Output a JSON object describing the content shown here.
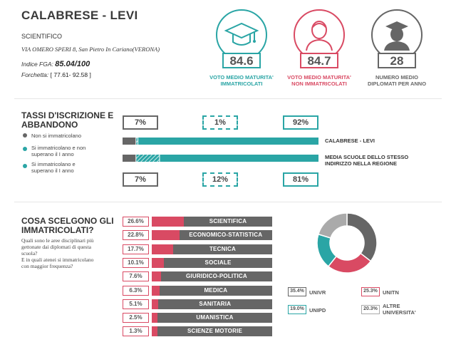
{
  "school": {
    "name": "CALABRESE - LEVI",
    "type": "SCIENTIFICO",
    "address": "VIA OMERO SPERI 8, San Pietro In Cariano(VERONA)",
    "fga_label": "Indice FGA:",
    "fga_value": "85.04/100",
    "forchetta_label": "Forchetta:",
    "forchetta_value": "[ 77.61- 92.58 ]"
  },
  "kpis": [
    {
      "value": "84.6",
      "label_line1": "VOTO MEDIO MATURITA'",
      "label_line2": "IMMATRICOLATI",
      "color": "#2aa5a5",
      "icon": "graduation-cap-icon"
    },
    {
      "value": "84.7",
      "label_line1": "VOTO MEDIO MATURITA'",
      "label_line2": "NON IMMATRICOLATI",
      "color": "#d94a63",
      "icon": "person-icon"
    },
    {
      "value": "28",
      "label_line1": "NUMERO MEDIO",
      "label_line2": "DIPLOMATI PER ANNO",
      "color": "#666666",
      "icon": "graduate-person-icon"
    }
  ],
  "enrollment": {
    "title_line1": "TASSI D'ISCRIZIONE E",
    "title_line2": "ABBANDONO",
    "legend": [
      {
        "line1": "Non si immatricolano",
        "line2": "",
        "color": "#666666"
      },
      {
        "line1": "Si immatricolano e non",
        "line2": "superano il I anno",
        "color": "#2aa5a5"
      },
      {
        "line1": "Si immatricolano e",
        "line2": "superano il I anno",
        "color": "#2aa5a5"
      }
    ],
    "school_row": {
      "label": "CALABRESE - LEVI",
      "not_enrolled": "7%",
      "dropout": "1%",
      "pass": "92%",
      "values": [
        7,
        1,
        92
      ]
    },
    "region_row": {
      "label_line1": "MEDIA SCUOLE DELLO STESSO",
      "label_line2": "INDIRIZZO NELLA REGIONE",
      "not_enrolled": "7%",
      "dropout": "12%",
      "pass": "81%",
      "values": [
        7,
        12,
        81
      ]
    },
    "colors": {
      "gray": "#666666",
      "teal": "#2aa5a5"
    }
  },
  "areas": {
    "title_line1": "COSA SCELGONO GLI",
    "title_line2": "IMMATRICOLATI?",
    "question_line1": "Quali sono le aree disciplinari più",
    "question_line2": "gettonate dai diplomati di questa",
    "question_line3": "scuola?",
    "question_line4": "E in quali atenei si immatricolano",
    "question_line5": "con maggior frequenza?",
    "items": [
      {
        "pct": "26.6%",
        "value": 26.6,
        "name": "SCIENTIFICA"
      },
      {
        "pct": "22.8%",
        "value": 22.8,
        "name": "ECONOMICO-STATISTICA"
      },
      {
        "pct": "17.7%",
        "value": 17.7,
        "name": "TECNICA"
      },
      {
        "pct": "10.1%",
        "value": 10.1,
        "name": "SOCIALE"
      },
      {
        "pct": "7.6%",
        "value": 7.6,
        "name": "GIURIDICO-POLITICA"
      },
      {
        "pct": "6.3%",
        "value": 6.3,
        "name": "MEDICA"
      },
      {
        "pct": "5.1%",
        "value": 5.1,
        "name": "SANITARIA"
      },
      {
        "pct": "2.5%",
        "value": 2.5,
        "name": "UMANISTICA"
      },
      {
        "pct": "1.3%",
        "value": 1.3,
        "name": "SCIENZE MOTORIE"
      }
    ]
  },
  "universities": {
    "items": [
      {
        "pct": "35.4%",
        "value": 35.4,
        "name_line1": "UNIVR",
        "name_line2": "",
        "color": "#666666"
      },
      {
        "pct": "25.3%",
        "value": 25.3,
        "name_line1": "UNITN",
        "name_line2": "",
        "color": "#d94a63"
      },
      {
        "pct": "19.0%",
        "value": 19.0,
        "name_line1": "UNIPD",
        "name_line2": "",
        "color": "#2aa5a5"
      },
      {
        "pct": "20.3%",
        "value": 20.3,
        "name_line1": "ALTRE",
        "name_line2": "UNIVERSITA'",
        "color": "#aaaaaa"
      }
    ]
  }
}
